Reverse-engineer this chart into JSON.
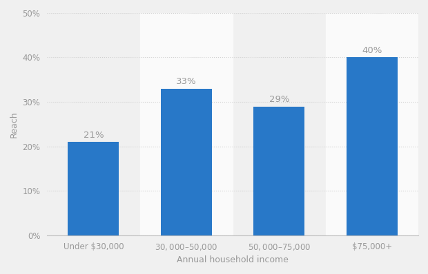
{
  "categories": [
    "Under $30,000",
    "$30,000–$50,000",
    "$50,000–$75,000",
    "$75,000+"
  ],
  "values": [
    21,
    33,
    29,
    40
  ],
  "bar_color": "#2878c8",
  "bar_labels": [
    "21%",
    "33%",
    "29%",
    "40%"
  ],
  "xlabel": "Annual household income",
  "ylabel": "Reach",
  "ylim": [
    0,
    50
  ],
  "yticks": [
    0,
    10,
    20,
    30,
    40,
    50
  ],
  "ytick_labels": [
    "0%",
    "10%",
    "20%",
    "30%",
    "40%",
    "50%"
  ],
  "background_color": "#f0f0f0",
  "plot_bg_color": "#f0f0f0",
  "stripe_color": "#e8e8e8",
  "white_col_color": "#fafafa",
  "grid_color": "#d0d0d0",
  "text_color": "#999999",
  "axis_label_fontsize": 9,
  "tick_fontsize": 8.5,
  "bar_label_fontsize": 9.5
}
